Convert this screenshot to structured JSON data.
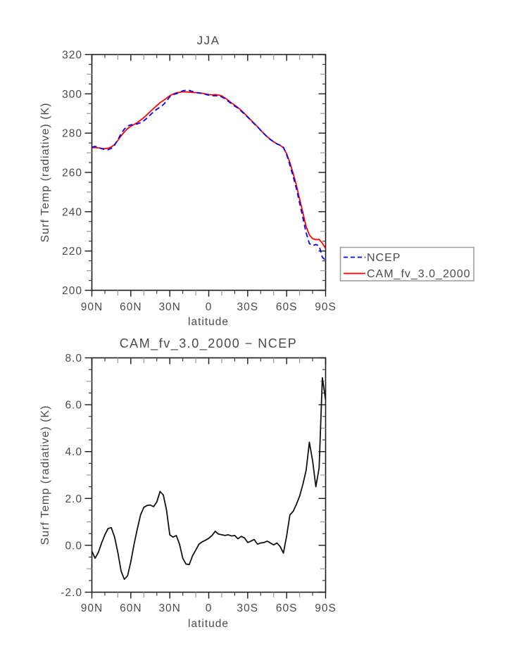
{
  "figure": {
    "description": "Two-panel zonal mean line plot of surface radiative temperature",
    "background_color": "#ffffff",
    "frame_color": "#1a1a1a",
    "text_color": "#4a4a4a"
  },
  "chart_data": [
    {
      "type": "line",
      "title": "JJA",
      "xlabel": "latitude",
      "ylabel": "Surf Temp (radiative) (K)",
      "ylim": [
        200,
        320
      ],
      "xlim_deg_north": [
        90,
        -90
      ],
      "grid": false,
      "legend_position": "outside-right-bottom",
      "xticks": {
        "values": [
          90,
          60,
          30,
          0,
          -30,
          -60,
          -90
        ],
        "labels": [
          "90N",
          "60N",
          "30N",
          "0",
          "30S",
          "60S",
          "90S"
        ]
      },
      "yticks": {
        "values": [
          200,
          220,
          240,
          260,
          280,
          300,
          320
        ],
        "labels": [
          "200",
          "220",
          "240",
          "260",
          "280",
          "300",
          "320"
        ]
      },
      "x": [
        90,
        87.5,
        85,
        82.5,
        80,
        77.5,
        75,
        72.5,
        70,
        67.5,
        65,
        62.5,
        60,
        57.5,
        55,
        52.5,
        50,
        47.5,
        45,
        42.5,
        40,
        37.5,
        35,
        32.5,
        30,
        27.5,
        25,
        22.5,
        20,
        17.5,
        15,
        12.5,
        10,
        7.5,
        5,
        2.5,
        0,
        -2.5,
        -5,
        -7.5,
        -10,
        -12.5,
        -15,
        -17.5,
        -20,
        -22.5,
        -25,
        -27.5,
        -30,
        -32.5,
        -35,
        -37.5,
        -40,
        -42.5,
        -45,
        -47.5,
        -50,
        -52.5,
        -55,
        -57.5,
        -60,
        -62.5,
        -65,
        -67.5,
        -70,
        -72.5,
        -75,
        -77.5,
        -80,
        -82.5,
        -85,
        -87.5,
        -90
      ],
      "series": [
        {
          "name": "NCEP",
          "color": "#0000ff",
          "style": "dashed",
          "values": [
            272.85,
            273.25,
            272.8,
            272.1,
            271.65,
            271.58,
            272.25,
            273.85,
            276.6,
            279.7,
            282.05,
            283.6,
            284.2,
            284.35,
            284.7,
            285.3,
            286.28,
            287.7,
            289.28,
            290.85,
            292.15,
            293.2,
            294.45,
            296.3,
            298.55,
            299.55,
            300.08,
            300.75,
            301.55,
            301.8,
            301.72,
            301.15,
            300.8,
            300.45,
            300.15,
            299.78,
            299.3,
            299.08,
            299.0,
            298.92,
            298.45,
            297.48,
            296.25,
            295.0,
            293.78,
            292.72,
            291.22,
            289.68,
            288.18,
            286.42,
            284.75,
            283.25,
            281.4,
            279.68,
            278.02,
            276.7,
            275.58,
            274.5,
            273.85,
            272.83,
            269.1,
            263.7,
            258.05,
            251.75,
            244.4,
            236.9,
            229.3,
            223.8,
            222.7,
            223.3,
            222.6,
            216.85,
            215.1
          ]
        },
        {
          "name": "CAM_fv_3.0_2000",
          "color": "#ff0000",
          "style": "solid",
          "values": [
            272.6,
            272.7,
            272.5,
            272.2,
            272.1,
            272.3,
            273.0,
            274.2,
            276.3,
            278.6,
            280.6,
            282.3,
            283.5,
            284.4,
            285.4,
            286.6,
            287.9,
            289.4,
            291.0,
            292.5,
            294.0,
            295.5,
            296.6,
            297.8,
            299.0,
            299.9,
            300.5,
            300.8,
            301.0,
            301.0,
            300.9,
            300.7,
            300.6,
            300.5,
            300.3,
            300.0,
            299.6,
            299.5,
            299.6,
            299.4,
            298.9,
            297.9,
            296.7,
            295.4,
            294.2,
            293.0,
            291.6,
            290.0,
            288.3,
            286.6,
            285.0,
            283.3,
            281.5,
            279.8,
            278.2,
            276.8,
            275.6,
            274.6,
            273.8,
            272.5,
            269.5,
            265.0,
            259.5,
            253.5,
            246.5,
            239.5,
            232.5,
            228.2,
            226.3,
            225.8,
            225.9,
            224.0,
            221.3
          ]
        }
      ],
      "legend": {
        "entries": [
          "NCEP",
          "CAM_fv_3.0_2000"
        ],
        "border_color": "#999999"
      }
    },
    {
      "type": "line",
      "title": "CAM_fv_3.0_2000 − NCEP",
      "xlabel": "latitude",
      "ylabel": "Surf Temp (radiative) (K)",
      "ylim": [
        -2.0,
        8.0
      ],
      "xlim_deg_north": [
        90,
        -90
      ],
      "grid": false,
      "xticks": {
        "values": [
          90,
          60,
          30,
          0,
          -30,
          -60,
          -90
        ],
        "labels": [
          "90N",
          "60N",
          "30N",
          "0",
          "30S",
          "60S",
          "90S"
        ]
      },
      "yticks": {
        "values": [
          -2.0,
          0.0,
          2.0,
          4.0,
          6.0,
          8.0
        ],
        "labels": [
          "-2.0",
          "0.0",
          "2.0",
          "4.0",
          "6.0",
          "8.0"
        ]
      },
      "x": [
        90,
        87.5,
        85,
        82.5,
        80,
        77.5,
        75,
        72.5,
        70,
        67.5,
        65,
        62.5,
        60,
        57.5,
        55,
        52.5,
        50,
        47.5,
        45,
        42.5,
        40,
        37.5,
        35,
        32.5,
        30,
        27.5,
        25,
        22.5,
        20,
        17.5,
        15,
        12.5,
        10,
        7.5,
        5,
        2.5,
        0,
        -2.5,
        -5,
        -7.5,
        -10,
        -12.5,
        -15,
        -17.5,
        -20,
        -22.5,
        -25,
        -27.5,
        -30,
        -32.5,
        -35,
        -37.5,
        -40,
        -42.5,
        -45,
        -47.5,
        -50,
        -52.5,
        -55,
        -57.5,
        -60,
        -62.5,
        -65,
        -67.5,
        -70,
        -72.5,
        -75,
        -77.5,
        -80,
        -82.5,
        -85,
        -87.5,
        -90
      ],
      "series": [
        {
          "name": "CAM_fv_3.0_2000 − NCEP",
          "color": "#111111",
          "style": "solid",
          "values": [
            -0.25,
            -0.55,
            -0.3,
            0.1,
            0.45,
            0.72,
            0.75,
            0.35,
            -0.3,
            -1.1,
            -1.45,
            -1.3,
            -0.7,
            0.05,
            0.7,
            1.3,
            1.62,
            1.7,
            1.72,
            1.65,
            1.85,
            2.3,
            2.15,
            1.5,
            0.45,
            0.35,
            0.42,
            0.05,
            -0.55,
            -0.8,
            -0.82,
            -0.45,
            -0.2,
            0.05,
            0.15,
            0.22,
            0.3,
            0.42,
            0.6,
            0.48,
            0.45,
            0.42,
            0.45,
            0.4,
            0.42,
            0.28,
            0.38,
            0.32,
            0.12,
            0.18,
            0.25,
            0.05,
            0.1,
            0.12,
            0.18,
            0.1,
            0.02,
            0.1,
            -0.05,
            -0.33,
            0.4,
            1.3,
            1.45,
            1.75,
            2.1,
            2.6,
            3.2,
            4.4,
            3.6,
            2.5,
            3.3,
            7.15,
            6.2
          ]
        }
      ]
    }
  ]
}
